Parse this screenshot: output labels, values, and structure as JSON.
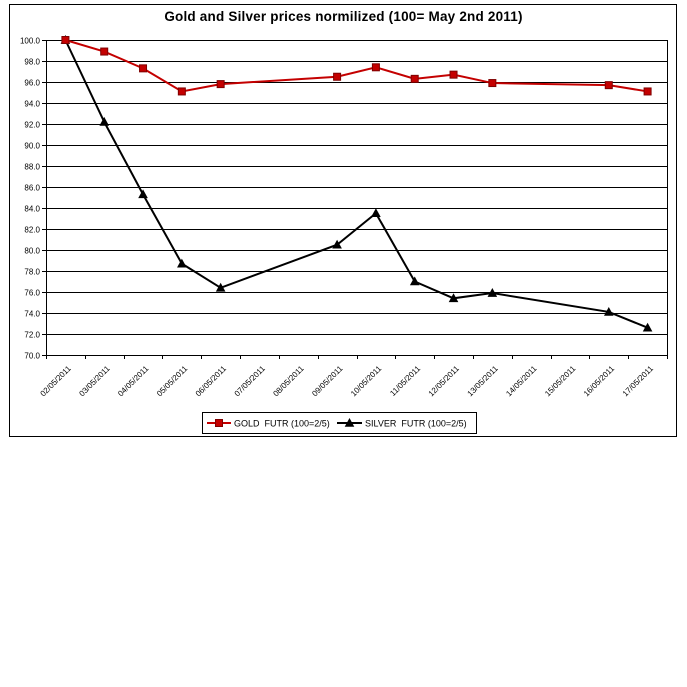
{
  "chart_data": {
    "type": "line",
    "title": "Gold and Silver prices normilized (100= May 2nd 2011)",
    "categories": [
      "02/05/2011",
      "03/05/2011",
      "04/05/2011",
      "05/05/2011",
      "06/05/2011",
      "07/05/2011",
      "08/05/2011",
      "09/05/2011",
      "10/05/2011",
      "11/05/2011",
      "12/05/2011",
      "13/05/2011",
      "14/05/2011",
      "15/05/2011",
      "16/05/2011",
      "17/05/2011"
    ],
    "series": [
      {
        "name": "GOLD  FUTR (100=2/5)",
        "marker": "square",
        "color": "#c40000",
        "values": [
          100.0,
          98.9,
          97.3,
          95.1,
          95.8,
          null,
          null,
          96.5,
          97.4,
          96.3,
          96.7,
          95.9,
          null,
          null,
          95.7,
          95.1
        ]
      },
      {
        "name": "SILVER  FUTR (100=2/5)",
        "marker": "triangle-up",
        "color": "#000000",
        "values": [
          100.0,
          92.2,
          85.3,
          78.7,
          76.4,
          null,
          null,
          80.5,
          83.5,
          77.0,
          75.4,
          75.9,
          null,
          null,
          74.1,
          72.6
        ]
      }
    ],
    "xlabel": "",
    "ylabel": "",
    "ylim": [
      70.0,
      100.0
    ],
    "ytick_step": 2.0,
    "y_ticks": [
      "100.0",
      "98.0",
      "96.0",
      "94.0",
      "92.0",
      "90.0",
      "88.0",
      "86.0",
      "84.0",
      "82.0",
      "80.0",
      "78.0",
      "76.0",
      "74.0",
      "72.0",
      "70.0"
    ],
    "grid": "horizontal",
    "legend_position": "bottom-center",
    "axis_color": "#000000",
    "background_color": "#ffffff"
  }
}
